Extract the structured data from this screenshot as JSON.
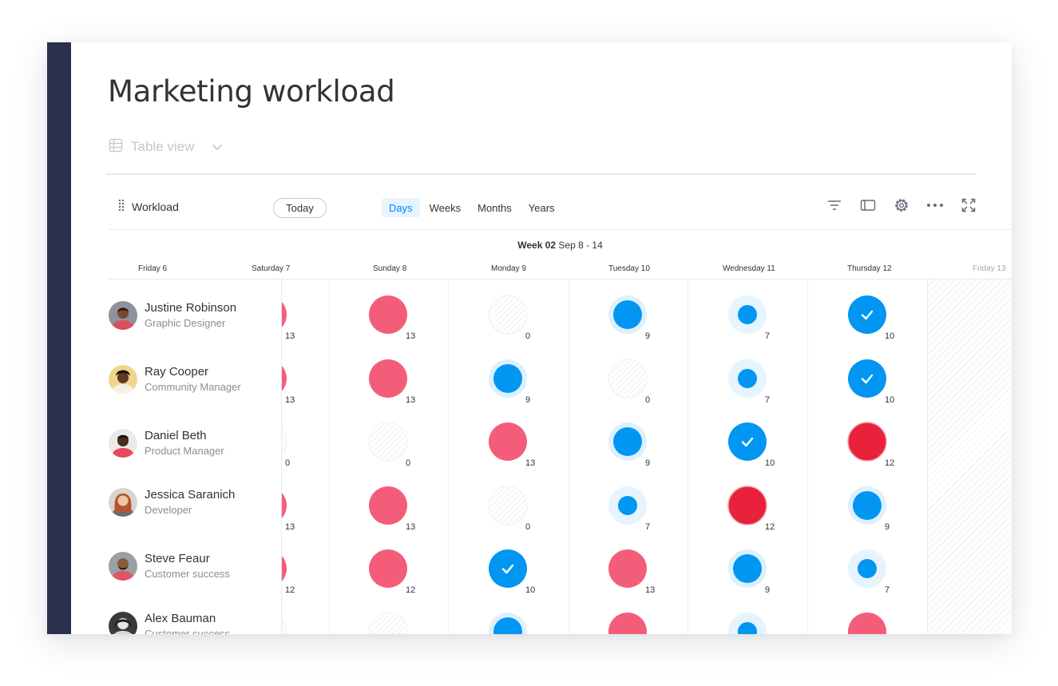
{
  "board": {
    "title": "Marketing workload"
  },
  "view_selector": {
    "label": "Table view",
    "icon": "table-icon"
  },
  "widget": {
    "title": "Workload",
    "today_label": "Today",
    "scales": [
      {
        "label": "Days",
        "active": true
      },
      {
        "label": "Weeks",
        "active": false
      },
      {
        "label": "Months",
        "active": false
      },
      {
        "label": "Years",
        "active": false
      }
    ],
    "tools": [
      "filter-icon",
      "side-panel-icon",
      "settings-icon",
      "more-options-icon",
      "fullscreen-icon"
    ]
  },
  "week": {
    "label": "Week 02",
    "range": "Sep 8 - 14"
  },
  "days": [
    "Friday 6",
    "Saturday 7",
    "Sunday 8",
    "Monday 9",
    "Tuesday 10",
    "Wednesday 11",
    "Thursday 12",
    "Friday 13"
  ],
  "colors": {
    "sidebar": "#292f4c",
    "blue": "#0096f2",
    "pink": "#f45d79",
    "red": "#e8223b",
    "accent": "#0085ff"
  },
  "people": [
    {
      "name": "Justine Robinson",
      "role": "Graphic Designer"
    },
    {
      "name": "Ray Cooper",
      "role": "Community Manager"
    },
    {
      "name": "Daniel Beth",
      "role": "Product Manager"
    },
    {
      "name": "Jessica Saranich",
      "role": "Developer"
    },
    {
      "name": "Steve Feaur",
      "role": "Customer success"
    },
    {
      "name": "Alex Bauman",
      "role": "Customer success"
    }
  ],
  "workload": [
    [
      {
        "kind": "pink",
        "value": "13"
      },
      {
        "kind": "pink",
        "value": "13"
      },
      {
        "kind": "empty",
        "value": "0"
      },
      {
        "kind": "blue-lg",
        "value": "9"
      },
      {
        "kind": "blue-sm",
        "value": "7"
      },
      {
        "kind": "check",
        "value": "10"
      }
    ],
    [
      {
        "kind": "pink",
        "value": "13"
      },
      {
        "kind": "pink",
        "value": "13"
      },
      {
        "kind": "blue-lg",
        "value": "9"
      },
      {
        "kind": "empty",
        "value": "0"
      },
      {
        "kind": "blue-sm",
        "value": "7"
      },
      {
        "kind": "check",
        "value": "10"
      }
    ],
    [
      {
        "kind": "empty",
        "value": "0"
      },
      {
        "kind": "empty",
        "value": "0"
      },
      {
        "kind": "pink",
        "value": "13"
      },
      {
        "kind": "blue-lg",
        "value": "9"
      },
      {
        "kind": "check",
        "value": "10"
      },
      {
        "kind": "red",
        "value": "12"
      }
    ],
    [
      {
        "kind": "pink",
        "value": "13"
      },
      {
        "kind": "pink",
        "value": "13"
      },
      {
        "kind": "empty",
        "value": "0"
      },
      {
        "kind": "blue-sm",
        "value": "7"
      },
      {
        "kind": "red",
        "value": "12"
      },
      {
        "kind": "blue-lg",
        "value": "9"
      }
    ],
    [
      {
        "kind": "pink",
        "value": "12"
      },
      {
        "kind": "pink",
        "value": "12"
      },
      {
        "kind": "check",
        "value": "10"
      },
      {
        "kind": "pink",
        "value": "13"
      },
      {
        "kind": "blue-lg",
        "value": "9"
      },
      {
        "kind": "blue-sm",
        "value": "7"
      }
    ],
    [
      {
        "kind": "empty",
        "value": ""
      },
      {
        "kind": "empty",
        "value": ""
      },
      {
        "kind": "blue-lg",
        "value": ""
      },
      {
        "kind": "pink",
        "value": ""
      },
      {
        "kind": "blue-sm",
        "value": ""
      },
      {
        "kind": "pink",
        "value": ""
      }
    ]
  ]
}
